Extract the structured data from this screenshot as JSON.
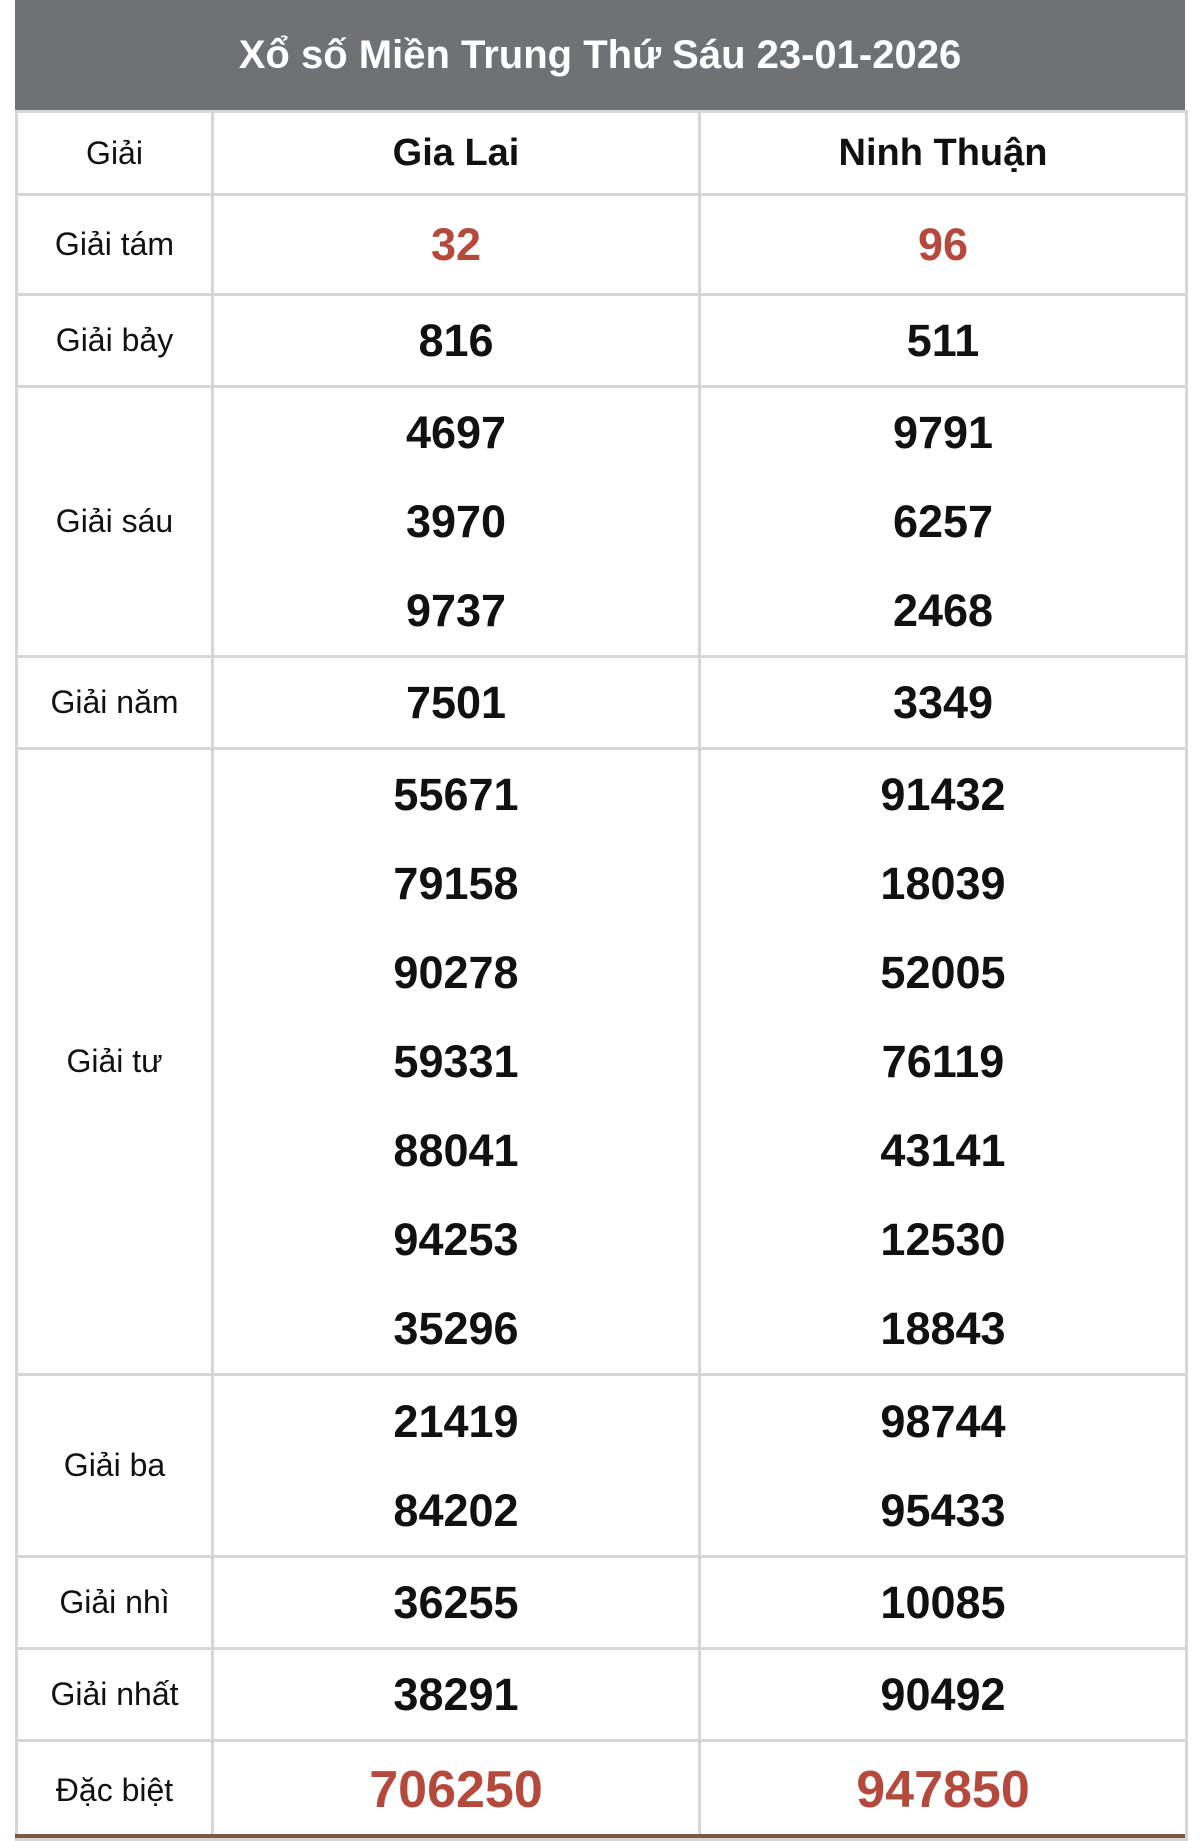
{
  "title": "Xổ số Miền Trung Thứ Sáu 23-01-2026",
  "header": {
    "prize": "Giải",
    "provinces": [
      "Gia Lai",
      "Ninh Thuận"
    ]
  },
  "colors": {
    "header_bg": "#6e7275",
    "highlight": "#b54a3c"
  },
  "rows": [
    {
      "label": "Giải tám",
      "values": [
        [
          "32"
        ],
        [
          "96"
        ]
      ],
      "highlight": true
    },
    {
      "label": "Giải bảy",
      "values": [
        [
          "816"
        ],
        [
          "511"
        ]
      ]
    },
    {
      "label": "Giải sáu",
      "values": [
        [
          "4697",
          "3970",
          "9737"
        ],
        [
          "9791",
          "6257",
          "2468"
        ]
      ]
    },
    {
      "label": "Giải năm",
      "values": [
        [
          "7501"
        ],
        [
          "3349"
        ]
      ]
    },
    {
      "label": "Giải tư",
      "values": [
        [
          "55671",
          "79158",
          "90278",
          "59331",
          "88041",
          "94253",
          "35296"
        ],
        [
          "91432",
          "18039",
          "52005",
          "76119",
          "43141",
          "12530",
          "18843"
        ]
      ]
    },
    {
      "label": "Giải ba",
      "values": [
        [
          "21419",
          "84202"
        ],
        [
          "98744",
          "95433"
        ]
      ]
    },
    {
      "label": "Giải nhì",
      "values": [
        [
          "36255"
        ],
        [
          "10085"
        ]
      ]
    },
    {
      "label": "Giải nhất",
      "values": [
        [
          "38291"
        ],
        [
          "90492"
        ]
      ]
    },
    {
      "label": "Đặc biệt",
      "values": [
        [
          "706250"
        ],
        [
          "947850"
        ]
      ],
      "highlight": true
    }
  ]
}
